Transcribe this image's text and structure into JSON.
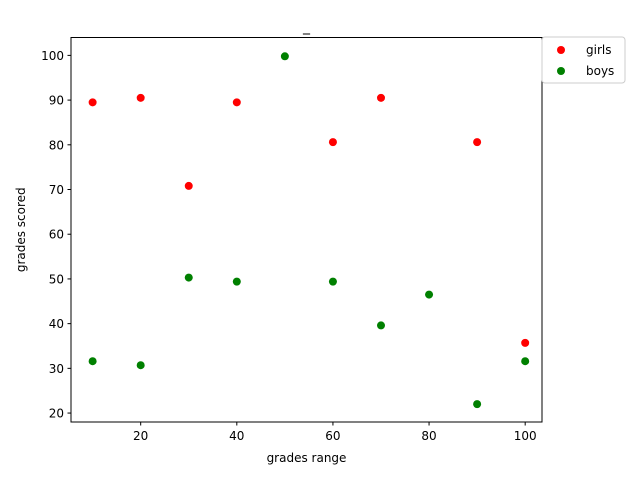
{
  "chart_data": {
    "type": "scatter",
    "title": "_",
    "xlabel": "grades range",
    "ylabel": "grades scored",
    "xlim": [
      5.5,
      103.5
    ],
    "ylim": [
      18,
      104
    ],
    "xticks": [
      20,
      40,
      60,
      80,
      100
    ],
    "yticks": [
      20,
      30,
      40,
      50,
      60,
      70,
      80,
      90,
      100
    ],
    "grid": false,
    "legend_position": "outside top-right",
    "series": [
      {
        "name": "girls",
        "color": "#ff0000",
        "points": [
          {
            "x": 10,
            "y": 89.5
          },
          {
            "x": 20,
            "y": 90.5
          },
          {
            "x": 30,
            "y": 70.8
          },
          {
            "x": 40,
            "y": 89.5
          },
          {
            "x": 60,
            "y": 80.6
          },
          {
            "x": 70,
            "y": 90.5
          },
          {
            "x": 90,
            "y": 80.6
          },
          {
            "x": 100,
            "y": 35.7
          }
        ]
      },
      {
        "name": "boys",
        "color": "#008000",
        "points": [
          {
            "x": 10,
            "y": 31.6
          },
          {
            "x": 20,
            "y": 30.7
          },
          {
            "x": 30,
            "y": 50.3
          },
          {
            "x": 40,
            "y": 49.4
          },
          {
            "x": 50,
            "y": 99.8
          },
          {
            "x": 60,
            "y": 49.4
          },
          {
            "x": 70,
            "y": 39.6
          },
          {
            "x": 80,
            "y": 46.5
          },
          {
            "x": 90,
            "y": 22.0
          },
          {
            "x": 100,
            "y": 31.6
          }
        ]
      }
    ]
  }
}
